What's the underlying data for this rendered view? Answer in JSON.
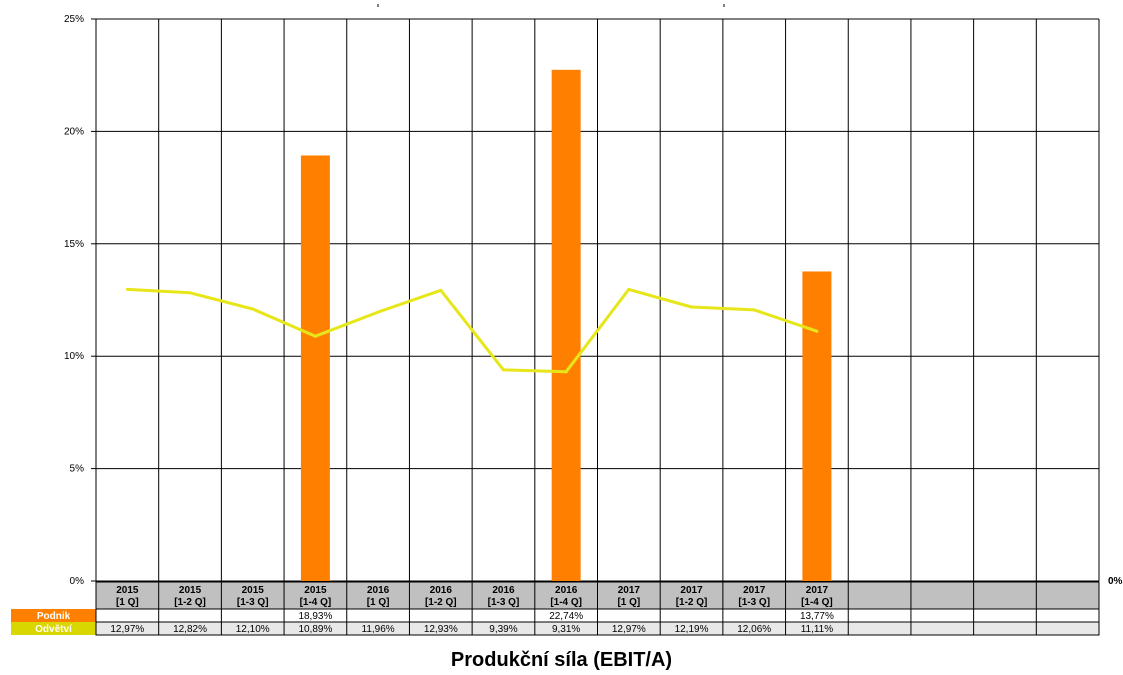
{
  "chart_data": {
    "type": "bar",
    "title": "Produkční síla (EBIT/A)",
    "ylim": [
      0,
      25
    ],
    "yticks": [
      "0%",
      "5%",
      "10%",
      "15%",
      "20%",
      "25%"
    ],
    "right_axis_label": "0%",
    "grid": true,
    "categories": [
      [
        "2015",
        "[1 Q]"
      ],
      [
        "2015",
        "[1-2 Q]"
      ],
      [
        "2015",
        "[1-3 Q]"
      ],
      [
        "2015",
        "[1-4 Q]"
      ],
      [
        "2016",
        "[1 Q]"
      ],
      [
        "2016",
        "[1-2 Q]"
      ],
      [
        "2016",
        "[1-3 Q]"
      ],
      [
        "2016",
        "[1-4 Q]"
      ],
      [
        "2017",
        "[1 Q]"
      ],
      [
        "2017",
        "[1-2 Q]"
      ],
      [
        "2017",
        "[1-3 Q]"
      ],
      [
        "2017",
        "[1-4 Q]"
      ],
      [
        "",
        ""
      ],
      [
        "",
        ""
      ],
      [
        "",
        ""
      ],
      [
        "",
        ""
      ]
    ],
    "series": [
      {
        "name": "Podnik",
        "kind": "bar",
        "color": "#ff8000",
        "values": [
          null,
          null,
          null,
          18.93,
          null,
          null,
          null,
          22.74,
          null,
          null,
          null,
          13.77,
          null,
          null,
          null,
          null
        ],
        "labels": [
          "",
          "",
          "",
          "18,93%",
          "",
          "",
          "",
          "22,74%",
          "",
          "",
          "",
          "13,77%",
          "",
          "",
          "",
          ""
        ]
      },
      {
        "name": "Odvětví",
        "kind": "line",
        "color": "#e6e619",
        "values": [
          12.97,
          12.82,
          12.1,
          10.89,
          11.96,
          12.93,
          9.39,
          9.31,
          12.97,
          12.19,
          12.06,
          11.11,
          null,
          null,
          null,
          null
        ],
        "labels": [
          "12,97%",
          "12,82%",
          "12,10%",
          "10,89%",
          "11,96%",
          "12,93%",
          "9,39%",
          "9,31%",
          "12,97%",
          "12,19%",
          "12,06%",
          "11,11%",
          "",
          "",
          "",
          ""
        ]
      }
    ]
  }
}
